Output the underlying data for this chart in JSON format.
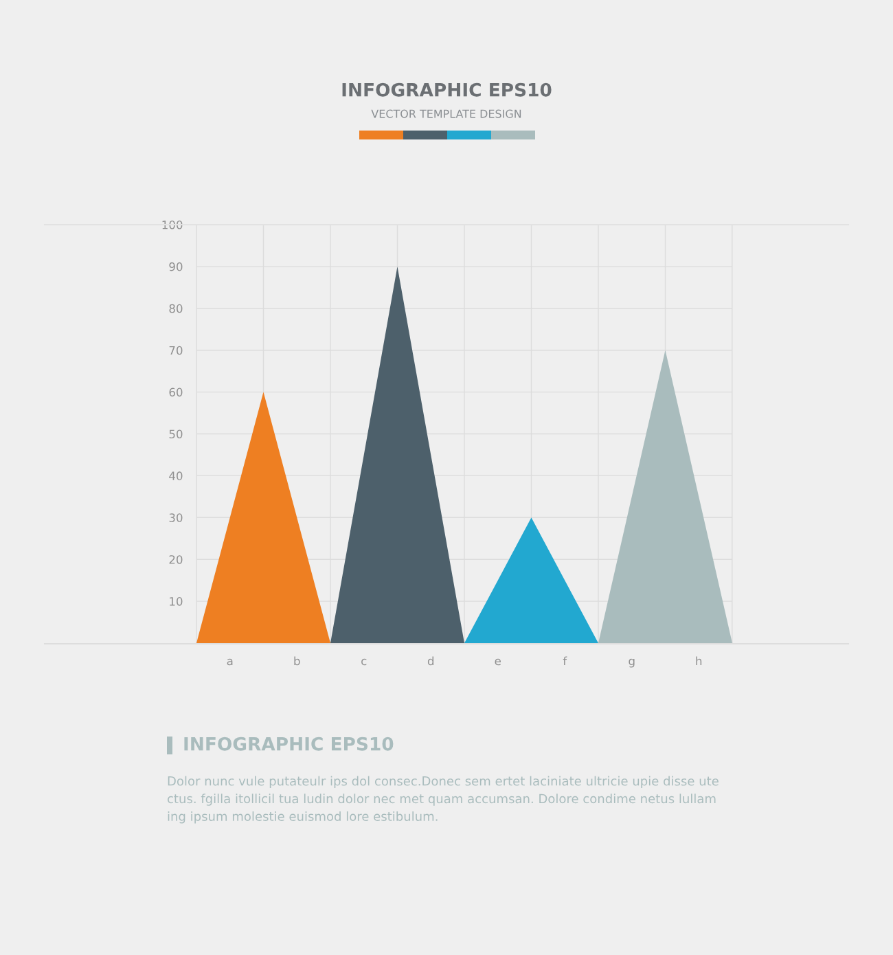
{
  "chart_data": {
    "type": "area",
    "title": "INFOGRAPHIC EPS10",
    "subtitle": "VECTOR TEMPLATE DESIGN",
    "categories": [
      null,
      "a",
      null,
      "b",
      null,
      "c",
      null,
      "d",
      null,
      "e",
      null,
      "f",
      null,
      "g",
      null,
      "h",
      null
    ],
    "ylim": [
      0,
      100
    ],
    "yticks": [
      {
        "value": 0,
        "label": null
      },
      10,
      20,
      30,
      40,
      50,
      60,
      70,
      80,
      90,
      100
    ],
    "series": [
      {
        "color": "#ee7f22",
        "values": [
          0,
          30,
          60,
          30,
          0,
          null,
          null,
          null,
          null,
          null,
          null,
          null,
          null,
          null,
          null,
          null,
          null
        ]
      },
      {
        "color": "#4d606b",
        "values": [
          null,
          null,
          null,
          null,
          0,
          45,
          90,
          45,
          0,
          null,
          null,
          null,
          null,
          null,
          null,
          null,
          null
        ]
      },
      {
        "color": "#22a8d0",
        "values": [
          null,
          null,
          null,
          null,
          null,
          null,
          null,
          null,
          0,
          15,
          30,
          15,
          0,
          null,
          null,
          null,
          null
        ]
      },
      {
        "color": "#a9bcbd",
        "values": [
          null,
          null,
          null,
          null,
          null,
          null,
          null,
          null,
          null,
          null,
          null,
          null,
          0,
          35,
          70,
          35,
          0
        ]
      }
    ],
    "grid": true,
    "annotations": [
      "INFOGRAPHIC EPS10",
      "Dolor nunc vule putateulr ips dol consec.Donec sem ertet laciniate ultricie upie disse ute\nctus. fgilla itollicil tua ludin dolor nec met quam accumsan. Dolore condime netus lullam\ning ipsum molestie euismod lore estibulum."
    ]
  }
}
